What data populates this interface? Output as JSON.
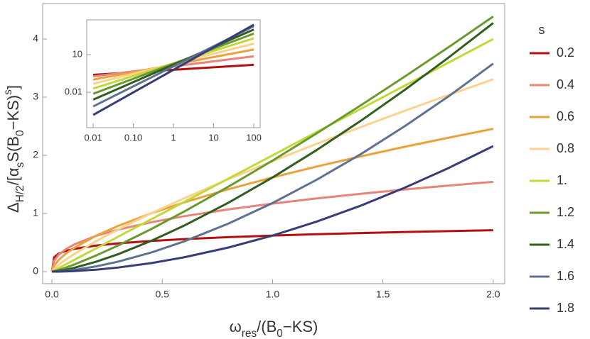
{
  "chart_data": [
    {
      "type": "line",
      "y_label": [
        {
          "text": "Δ"
        },
        {
          "text": "H/2",
          "shift": "sub"
        },
        {
          "text": "/[α"
        },
        {
          "text": "s",
          "shift": "sub"
        },
        {
          "text": "S(B"
        },
        {
          "text": "0",
          "shift": "sub"
        },
        {
          "text": "−KS)"
        },
        {
          "text": "s",
          "shift": "sup"
        },
        {
          "text": "]"
        }
      ],
      "x_label": [
        {
          "text": "ω"
        },
        {
          "text": "res",
          "shift": "sub"
        },
        {
          "text": "/(B"
        },
        {
          "text": "0",
          "shift": "sub"
        },
        {
          "text": "−KS)"
        }
      ],
      "legend_title": "s",
      "legend": "right",
      "x": [
        0,
        0.01,
        0.03,
        0.06,
        0.1,
        0.2,
        0.3,
        0.45,
        0.6,
        0.8,
        1.0,
        1.2,
        1.4,
        1.6,
        1.8,
        2.0
      ],
      "series": [
        {
          "name": "0.2",
          "color": "#b30f0f",
          "values": [
            0,
            0.247,
            0.308,
            0.353,
            0.391,
            0.449,
            0.487,
            0.528,
            0.56,
            0.593,
            0.62,
            0.643,
            0.663,
            0.681,
            0.697,
            0.712
          ]
        },
        {
          "name": "0.4",
          "color": "#e8847a",
          "values": [
            0,
            0.185,
            0.288,
            0.38,
            0.466,
            0.615,
            0.723,
            0.849,
            0.954,
            1.07,
            1.17,
            1.259,
            1.339,
            1.413,
            1.48,
            1.544
          ]
        },
        {
          "name": "0.6",
          "color": "#eaa23c",
          "values": [
            0,
            0.102,
            0.198,
            0.3,
            0.407,
            0.617,
            0.787,
            1.003,
            1.192,
            1.417,
            1.62,
            1.807,
            1.982,
            2.148,
            2.305,
            2.456
          ]
        },
        {
          "name": "0.8",
          "color": "#fcd28c",
          "values": [
            0,
            0.0477,
            0.115,
            0.2,
            0.301,
            0.524,
            0.725,
            1.003,
            1.262,
            1.59,
            1.9,
            2.198,
            2.487,
            2.767,
            3.04,
            3.308
          ]
        },
        {
          "name": "1.",
          "color": "#c2d93a",
          "values": [
            0,
            0.02,
            0.06,
            0.12,
            0.2,
            0.4,
            0.6,
            0.9,
            1.2,
            1.6,
            2,
            2.4,
            2.8,
            3.2,
            3.6,
            4.0
          ]
        },
        {
          "name": "1.2",
          "color": "#6a9a2e",
          "values": [
            0,
            0.0076,
            0.0284,
            0.0653,
            0.1205,
            0.277,
            0.45,
            0.732,
            1.035,
            1.461,
            1.91,
            2.378,
            2.86,
            3.357,
            3.866,
            4.387
          ]
        },
        {
          "name": "1.4",
          "color": "#2f5e1f",
          "values": [
            0,
            0.00257,
            0.012,
            0.0316,
            0.0645,
            0.17,
            0.3,
            0.529,
            0.793,
            1.186,
            1.62,
            2.091,
            2.594,
            3.128,
            3.689,
            4.275
          ]
        },
        {
          "name": "1.6",
          "color": "#5f7390",
          "values": [
            0,
            0.00074,
            0.0043,
            0.0131,
            0.0296,
            0.0899,
            0.172,
            0.329,
            0.521,
            0.826,
            1.18,
            1.58,
            2.021,
            2.503,
            3.021,
            3.577
          ]
        },
        {
          "name": "1.8",
          "color": "#383c78",
          "values": [
            0,
            0.00016,
            0.0011,
            0.0039,
            0.0098,
            0.0342,
            0.071,
            0.147,
            0.247,
            0.415,
            0.62,
            0.861,
            1.135,
            1.445,
            1.786,
            2.159
          ]
        }
      ],
      "xlim": [
        -0.042,
        2.052
      ],
      "ylim": [
        -0.207,
        4.61
      ],
      "xticks": [
        {
          "value": 0,
          "label": "0.0"
        },
        {
          "value": 0.5,
          "label": "0.5"
        },
        {
          "value": 1,
          "label": "1.0"
        },
        {
          "value": 1.5,
          "label": "1.5"
        },
        {
          "value": 2,
          "label": "2.0"
        }
      ],
      "yticks": [
        0,
        1,
        2,
        3,
        4
      ]
    },
    {
      "type": "line",
      "xscale": "log",
      "yscale": "log",
      "x": [
        0.01,
        1,
        100
      ],
      "series": [
        {
          "color": "#b30f0f",
          "values": [
            0.247,
            0.62,
            1.557
          ]
        },
        {
          "color": "#e8847a",
          "values": [
            0.1854,
            1.17,
            7.38
          ]
        },
        {
          "color": "#eaa23c",
          "values": [
            0.1022,
            1.62,
            25.7
          ]
        },
        {
          "color": "#fcd28c",
          "values": [
            0.0477,
            1.9,
            75.6
          ]
        },
        {
          "color": "#c2d93a",
          "values": [
            0.02,
            2.0,
            200
          ]
        },
        {
          "color": "#6a9a2e",
          "values": [
            0.0076,
            1.91,
            479.8
          ]
        },
        {
          "color": "#2f5e1f",
          "values": [
            0.00257,
            1.62,
            1022
          ]
        },
        {
          "color": "#5f7390",
          "values": [
            0.000745,
            1.18,
            1870
          ]
        },
        {
          "color": "#383c78",
          "values": [
            0.000156,
            0.62,
            2468
          ]
        }
      ],
      "xlim": [
        0.0069,
        144
      ],
      "ylim": [
        1.5e-05,
        6000
      ],
      "xticks": [
        0.01,
        {
          "value": 0.1,
          "label": "0.10"
        },
        1,
        10,
        100
      ],
      "yticks": [
        0.01,
        10
      ]
    }
  ]
}
